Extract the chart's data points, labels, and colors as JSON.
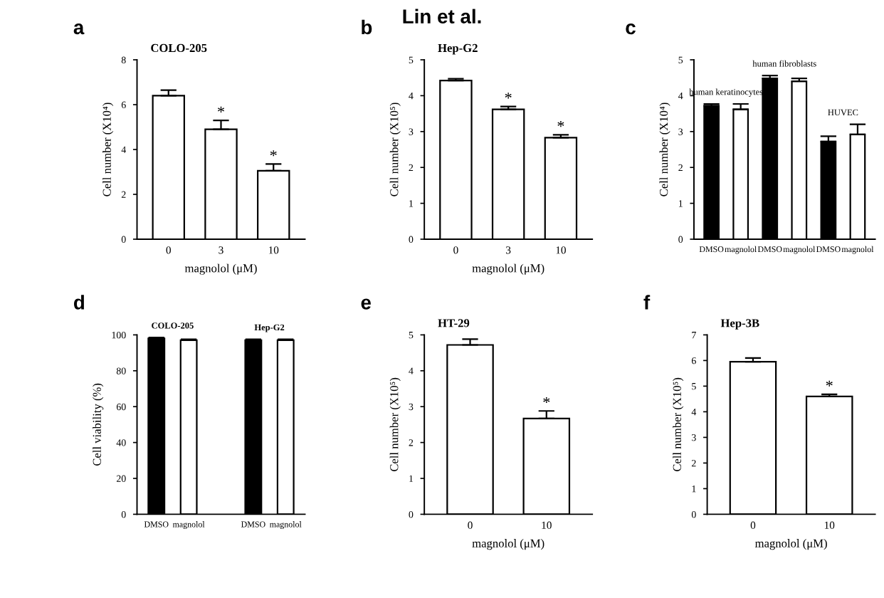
{
  "chart_data": [
    {
      "type": "bar",
      "title": "a",
      "subtitle": "COLO-205",
      "xlabel": "magnolol (μM)",
      "ylabel": "Cell number (X10⁴)",
      "categories": [
        "0",
        "3",
        "10"
      ],
      "values": [
        6.4,
        4.9,
        3.05
      ],
      "errors": [
        [
          6.4,
          6.65
        ],
        [
          4.9,
          5.3
        ],
        [
          3.05,
          3.35
        ]
      ],
      "colors": [
        "#ffffff",
        "#ffffff",
        "#ffffff"
      ],
      "ylim": [
        0,
        8
      ],
      "yticks": [
        0,
        2,
        4,
        6,
        8
      ],
      "grid": false,
      "annotations": [
        "Lin et al.",
        {
          "text": "*",
          "x": "3",
          "y": 5.3
        },
        {
          "text": "*",
          "x": "10",
          "y": 3.35
        }
      ]
    },
    {
      "type": "bar",
      "title": "b",
      "subtitle": "Hep-G2",
      "xlabel": "magnolol (μM)",
      "ylabel": "Cell number (X10⁵)",
      "categories": [
        "0",
        "3",
        "10"
      ],
      "values": [
        4.42,
        3.62,
        2.83
      ],
      "errors": [
        [
          4.42,
          4.47
        ],
        [
          3.62,
          3.7
        ],
        [
          2.83,
          2.91
        ]
      ],
      "colors": [
        "#ffffff",
        "#ffffff",
        "#ffffff"
      ],
      "ylim": [
        0,
        5
      ],
      "yticks": [
        0,
        1,
        2,
        3,
        4,
        5
      ],
      "grid": false,
      "annotations": [
        {
          "text": "*",
          "x": "3",
          "y": 3.7
        },
        {
          "text": "*",
          "x": "10",
          "y": 2.91
        }
      ]
    },
    {
      "type": "bar",
      "title": "c",
      "ylabel": "Cell number (X10⁴)",
      "categories": [
        "DMSO",
        "magnolol",
        "DMSO",
        "magnolol",
        "DMSO",
        "magnolol"
      ],
      "values": [
        3.72,
        3.62,
        4.48,
        4.4,
        2.72,
        2.92
      ],
      "errors": [
        [
          3.72,
          3.77
        ],
        [
          3.62,
          3.77
        ],
        [
          4.48,
          4.56
        ],
        [
          4.4,
          4.48
        ],
        [
          2.72,
          2.87
        ],
        [
          2.92,
          3.2
        ]
      ],
      "colors": [
        "#000000",
        "#ffffff",
        "#000000",
        "#ffffff",
        "#000000",
        "#ffffff"
      ],
      "ylim": [
        0,
        5
      ],
      "yticks": [
        0,
        1,
        2,
        3,
        4,
        5
      ],
      "grid": false,
      "annotations": [
        "human keratinocytes",
        "human fibroblasts",
        "HUVEC"
      ]
    },
    {
      "type": "bar",
      "title": "d",
      "ylabel": "Cell viability (%)",
      "categories": [
        "DMSO",
        "magnolol",
        null,
        "DMSO",
        "magnolol"
      ],
      "values": [
        98,
        97,
        null,
        97,
        97
      ],
      "errors": [
        [
          98,
          98.5
        ],
        [
          97,
          97.5
        ],
        null,
        [
          97,
          97.5
        ],
        [
          97,
          97.5
        ]
      ],
      "colors": [
        "#000000",
        "#ffffff",
        "#ffffff",
        "#000000",
        "#ffffff"
      ],
      "ylim": [
        0,
        100
      ],
      "yticks": [
        0,
        20,
        40,
        60,
        80,
        100
      ],
      "grid": false,
      "annotations": [
        "COLO-205",
        "Hep-G2"
      ]
    },
    {
      "type": "bar",
      "title": "e",
      "subtitle": "HT-29",
      "xlabel": "magnolol (μM)",
      "ylabel": "Cell number (X10⁵)",
      "categories": [
        "0",
        "10"
      ],
      "values": [
        4.72,
        2.67
      ],
      "errors": [
        [
          4.72,
          4.88
        ],
        [
          2.67,
          2.88
        ]
      ],
      "colors": [
        "#ffffff",
        "#ffffff"
      ],
      "ylim": [
        0,
        5
      ],
      "yticks": [
        0,
        1,
        2,
        3,
        4,
        5
      ],
      "grid": false,
      "annotations": [
        {
          "text": "*",
          "x": "10",
          "y": 2.88
        }
      ]
    },
    {
      "type": "bar",
      "title": "f",
      "subtitle": "Hep-3B",
      "xlabel": "magnolol (μM)",
      "ylabel": "Cell number (X10⁵)",
      "categories": [
        "0",
        "10"
      ],
      "values": [
        5.95,
        4.6
      ],
      "errors": [
        [
          5.95,
          6.1
        ],
        [
          4.6,
          4.68
        ]
      ],
      "colors": [
        "#ffffff",
        "#ffffff"
      ],
      "ylim": [
        0,
        7
      ],
      "yticks": [
        0,
        1,
        2,
        3,
        4,
        5,
        6,
        7
      ],
      "grid": false,
      "annotations": [
        {
          "text": "*",
          "x": "10",
          "y": 4.68
        }
      ]
    }
  ]
}
